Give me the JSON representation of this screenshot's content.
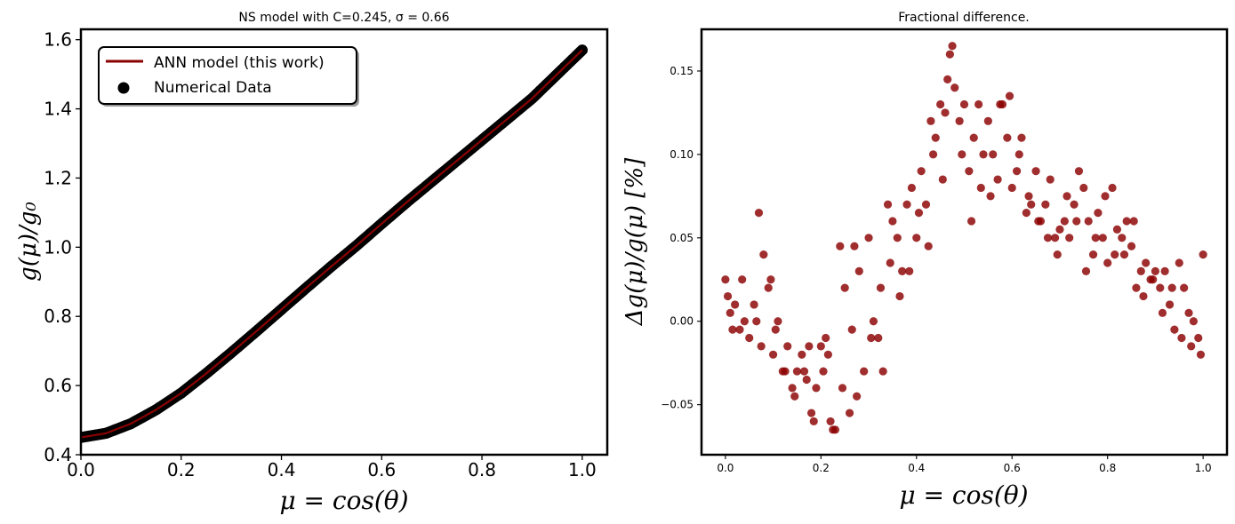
{
  "colors": {
    "model_line": "#8b0000",
    "data_points": "#000000",
    "diff_points": "#8b0000"
  },
  "chart_data": [
    {
      "type": "line",
      "title": "NS model with C=0.245, σ = 0.66",
      "xlabel": "μ = cos(θ)",
      "ylabel": "g(μ)/g₀",
      "xlim": [
        0.0,
        1.05
      ],
      "ylim": [
        0.4,
        1.63
      ],
      "xticks": [
        0.0,
        0.2,
        0.4,
        0.6,
        0.8,
        1.0
      ],
      "xtick_labels": [
        "0.0",
        "0.2",
        "0.4",
        "0.6",
        "0.8",
        "1.0"
      ],
      "yticks": [
        0.4,
        0.6,
        0.8,
        1.0,
        1.2,
        1.4,
        1.6
      ],
      "ytick_labels": [
        "0.4",
        "0.6",
        "0.8",
        "1.0",
        "1.2",
        "1.4",
        "1.6"
      ],
      "grid": false,
      "legend": "upper-left",
      "series": [
        {
          "name": "ANN model (this work)",
          "kind": "line",
          "x": [
            0.0,
            0.05,
            0.1,
            0.15,
            0.2,
            0.25,
            0.3,
            0.35,
            0.4,
            0.45,
            0.5,
            0.55,
            0.6,
            0.65,
            0.7,
            0.75,
            0.8,
            0.85,
            0.9,
            0.95,
            1.0
          ],
          "y": [
            0.45,
            0.462,
            0.49,
            0.53,
            0.578,
            0.635,
            0.695,
            0.757,
            0.82,
            0.883,
            0.945,
            1.005,
            1.068,
            1.13,
            1.19,
            1.25,
            1.31,
            1.37,
            1.43,
            1.5,
            1.57
          ]
        },
        {
          "name": "Numerical Data",
          "kind": "scatter",
          "x": [
            0.0,
            0.05,
            0.1,
            0.15,
            0.2,
            0.25,
            0.3,
            0.35,
            0.4,
            0.45,
            0.5,
            0.55,
            0.6,
            0.65,
            0.7,
            0.75,
            0.8,
            0.85,
            0.9,
            0.95,
            1.0
          ],
          "y": [
            0.45,
            0.462,
            0.49,
            0.53,
            0.578,
            0.635,
            0.695,
            0.757,
            0.82,
            0.883,
            0.945,
            1.005,
            1.068,
            1.13,
            1.19,
            1.25,
            1.31,
            1.37,
            1.43,
            1.5,
            1.57
          ]
        }
      ]
    },
    {
      "type": "scatter",
      "title": "Fractional difference.",
      "xlabel": "μ = cos(θ)",
      "ylabel": "Δg(μ)/g(μ) [%]",
      "xlim": [
        -0.05,
        1.05
      ],
      "ylim": [
        -0.08,
        0.175
      ],
      "xticks": [
        0.0,
        0.2,
        0.4,
        0.6,
        0.8,
        1.0
      ],
      "xtick_labels": [
        "0.0",
        "0.2",
        "0.4",
        "0.6",
        "0.8",
        "1.0"
      ],
      "yticks": [
        -0.05,
        0.0,
        0.05,
        0.1,
        0.15
      ],
      "ytick_labels": [
        "−0.05",
        "0.00",
        "0.05",
        "0.10",
        "0.15"
      ],
      "grid": false,
      "series": [
        {
          "x": [
            0.0,
            0.01,
            0.02,
            0.03,
            0.04,
            0.05,
            0.06,
            0.07,
            0.08,
            0.09,
            0.1,
            0.11,
            0.12,
            0.13,
            0.14,
            0.15,
            0.16,
            0.17,
            0.18,
            0.19,
            0.2,
            0.21,
            0.22,
            0.23,
            0.24,
            0.25,
            0.26,
            0.27,
            0.28,
            0.29,
            0.3,
            0.31,
            0.32,
            0.33,
            0.34,
            0.35,
            0.36,
            0.37,
            0.38,
            0.39,
            0.4,
            0.41,
            0.42,
            0.43,
            0.44,
            0.45,
            0.46,
            0.47,
            0.48,
            0.49,
            0.5,
            0.51,
            0.52,
            0.53,
            0.54,
            0.55,
            0.56,
            0.57,
            0.58,
            0.59,
            0.6,
            0.61,
            0.62,
            0.63,
            0.64,
            0.65,
            0.66,
            0.67,
            0.68,
            0.69,
            0.7,
            0.71,
            0.72,
            0.73,
            0.74,
            0.75,
            0.76,
            0.77,
            0.78,
            0.79,
            0.8,
            0.81,
            0.82,
            0.83,
            0.84,
            0.85,
            0.86,
            0.87,
            0.88,
            0.89,
            0.9,
            0.91,
            0.92,
            0.93,
            0.94,
            0.95,
            0.96,
            0.97,
            0.98,
            0.99,
            1.0,
            0.005,
            0.015,
            0.035,
            0.065,
            0.075,
            0.095,
            0.105,
            0.125,
            0.145,
            0.165,
            0.175,
            0.185,
            0.205,
            0.215,
            0.225,
            0.245,
            0.265,
            0.275,
            0.305,
            0.325,
            0.345,
            0.365,
            0.385,
            0.405,
            0.425,
            0.435,
            0.455,
            0.465,
            0.475,
            0.495,
            0.515,
            0.535,
            0.555,
            0.575,
            0.595,
            0.615,
            0.635,
            0.655,
            0.675,
            0.695,
            0.715,
            0.735,
            0.755,
            0.775,
            0.795,
            0.815,
            0.835,
            0.855,
            0.875,
            0.895,
            0.915,
            0.935,
            0.955,
            0.975,
            0.995
          ],
          "y": [
            0.025,
            0.005,
            0.01,
            -0.005,
            0.0,
            -0.01,
            0.01,
            0.065,
            0.04,
            0.02,
            -0.02,
            0.0,
            -0.03,
            -0.015,
            -0.04,
            -0.03,
            -0.02,
            -0.035,
            -0.055,
            -0.04,
            -0.015,
            -0.01,
            -0.06,
            -0.065,
            0.045,
            0.02,
            -0.055,
            0.045,
            0.03,
            -0.03,
            0.05,
            0.0,
            -0.01,
            -0.03,
            0.07,
            0.06,
            0.05,
            0.03,
            0.07,
            0.08,
            0.05,
            0.09,
            0.07,
            0.12,
            0.11,
            0.13,
            0.125,
            0.16,
            0.14,
            0.12,
            0.13,
            0.09,
            0.11,
            0.13,
            0.1,
            0.12,
            0.1,
            0.085,
            0.13,
            0.11,
            0.08,
            0.09,
            0.11,
            0.065,
            0.07,
            0.09,
            0.06,
            0.07,
            0.085,
            0.05,
            0.055,
            0.06,
            0.05,
            0.07,
            0.09,
            0.08,
            0.06,
            0.04,
            0.065,
            0.05,
            0.035,
            0.08,
            0.055,
            0.05,
            0.06,
            0.045,
            0.02,
            0.03,
            0.035,
            0.025,
            0.03,
            0.02,
            0.03,
            0.01,
            -0.005,
            0.035,
            0.02,
            0.005,
            0.0,
            -0.01,
            0.04,
            0.015,
            -0.005,
            0.025,
            0.0,
            -0.015,
            0.025,
            -0.005,
            -0.03,
            -0.045,
            -0.03,
            -0.015,
            -0.06,
            -0.03,
            -0.02,
            -0.065,
            -0.04,
            -0.005,
            -0.045,
            -0.01,
            0.02,
            0.035,
            0.015,
            0.03,
            0.065,
            0.045,
            0.1,
            0.085,
            0.145,
            0.165,
            0.1,
            0.06,
            0.08,
            0.075,
            0.13,
            0.135,
            0.1,
            0.075,
            0.06,
            0.05,
            0.04,
            0.075,
            0.06,
            0.03,
            0.05,
            0.075,
            0.04,
            0.04,
            0.06,
            0.015,
            0.025,
            0.005,
            0.02,
            -0.01,
            -0.015,
            -0.02
          ]
        }
      ]
    }
  ],
  "legend": {
    "items": [
      {
        "label": "ANN model (this work)"
      },
      {
        "label": "Numerical Data"
      }
    ]
  }
}
